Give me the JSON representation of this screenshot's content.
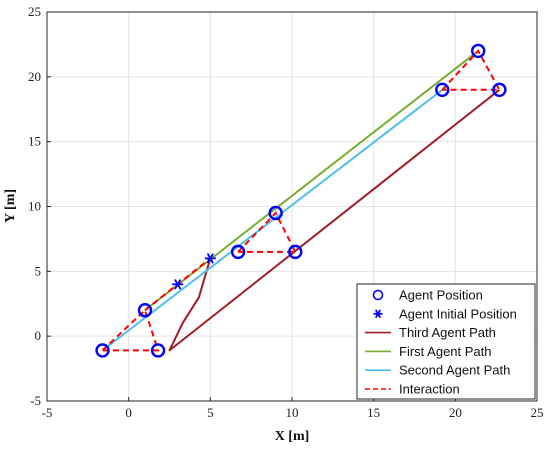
{
  "chart_data": {
    "type": "line",
    "xlabel": "X [m]",
    "ylabel": "Y [m]",
    "xlim": [
      -5,
      25
    ],
    "ylim": [
      -5,
      25
    ],
    "xticks": [
      -5,
      0,
      5,
      10,
      15,
      20,
      25
    ],
    "yticks": [
      -5,
      0,
      5,
      10,
      15,
      20,
      25
    ],
    "grid": true,
    "legend_placement": "bottom-right",
    "series": [
      {
        "name": "Agent Position",
        "kind": "marker-circle",
        "color": "#0000ff",
        "points": [
          [
            -1.6,
            -1.1
          ],
          [
            1.0,
            2.0
          ],
          [
            1.8,
            -1.1
          ],
          [
            6.7,
            6.5
          ],
          [
            9.0,
            9.5
          ],
          [
            10.2,
            6.5
          ],
          [
            19.2,
            19.0
          ],
          [
            21.4,
            22.0
          ],
          [
            22.7,
            19.0
          ]
        ]
      },
      {
        "name": "Agent Initial Position",
        "kind": "marker-star",
        "color": "#0000ff",
        "points": [
          [
            3.0,
            4.0
          ],
          [
            5.0,
            6.0
          ]
        ]
      },
      {
        "name": "Third Agent Path",
        "kind": "line",
        "color": "#a01d26",
        "points": [
          [
            5.0,
            6.0
          ],
          [
            4.3,
            3.0
          ],
          [
            3.3,
            1.0
          ],
          [
            2.5,
            -1.1
          ],
          [
            22.7,
            19.0
          ]
        ]
      },
      {
        "name": "First Agent Path",
        "kind": "line",
        "color": "#77ac30",
        "points": [
          [
            1.0,
            2.0
          ],
          [
            21.4,
            22.0
          ]
        ]
      },
      {
        "name": "Second Agent Path",
        "kind": "line",
        "color": "#4dbeee",
        "points": [
          [
            -1.6,
            -1.1
          ],
          [
            19.2,
            19.0
          ]
        ]
      },
      {
        "name": "Interaction",
        "kind": "dashed",
        "color": "#ff0000",
        "segments": [
          [
            [
              -1.6,
              -1.1
            ],
            [
              1.0,
              2.0
            ],
            [
              1.8,
              -1.1
            ],
            [
              -1.6,
              -1.1
            ]
          ],
          [
            [
              1.0,
              2.0
            ],
            [
              5.0,
              6.0
            ]
          ],
          [
            [
              6.7,
              6.5
            ],
            [
              9.0,
              9.5
            ],
            [
              10.2,
              6.5
            ],
            [
              6.7,
              6.5
            ]
          ],
          [
            [
              19.2,
              19.0
            ],
            [
              21.4,
              22.0
            ],
            [
              22.7,
              19.0
            ],
            [
              19.2,
              19.0
            ]
          ]
        ]
      }
    ],
    "legend_order": [
      "Agent Position",
      "Agent Initial Position",
      "Third Agent Path",
      "First Agent Path",
      "Second Agent Path",
      "Interaction"
    ]
  }
}
